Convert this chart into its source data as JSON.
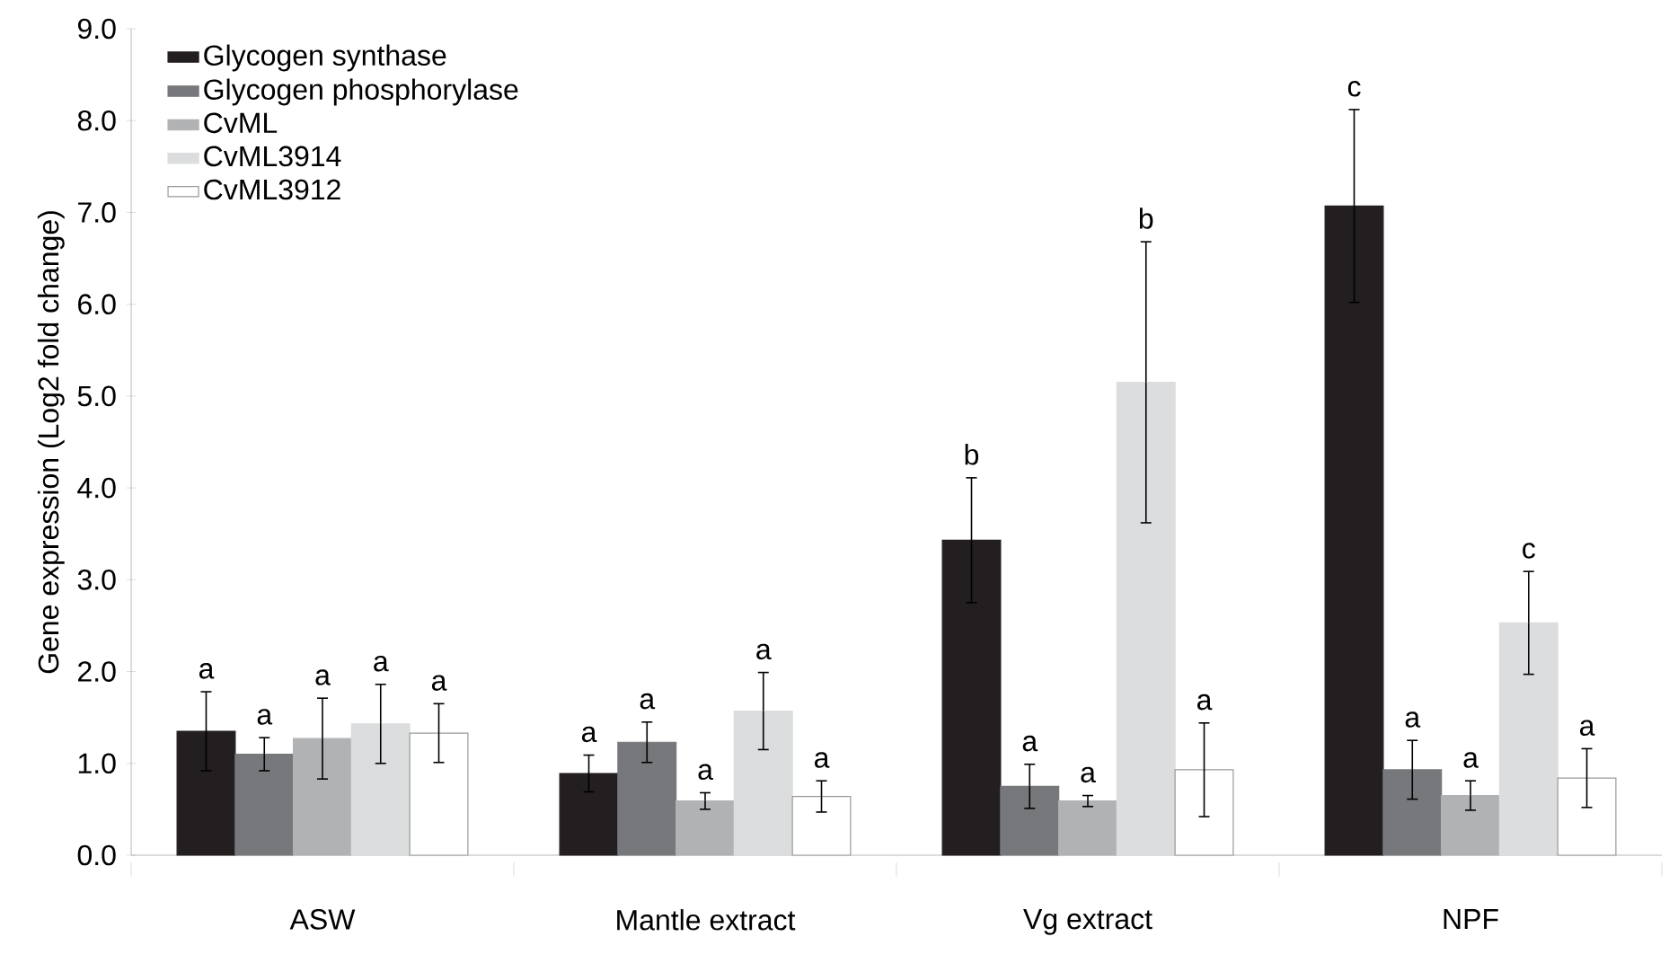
{
  "chart_data": {
    "type": "bar",
    "ylabel": "Gene expression  (Log2 fold  change)",
    "categories": [
      "ASW",
      "Mantle extract",
      "Vg extract",
      "NPF"
    ],
    "series": [
      {
        "name": "Glycogen synthase",
        "color": "#231f20",
        "values": [
          1.35,
          0.89,
          3.43,
          7.07
        ],
        "errors": [
          0.43,
          0.2,
          0.68,
          1.05
        ]
      },
      {
        "name": "Glycogen phosphorylase",
        "color": "#77787b",
        "values": [
          1.1,
          1.23,
          0.75,
          0.93
        ],
        "errors": [
          0.18,
          0.22,
          0.24,
          0.32
        ]
      },
      {
        "name": "CvML",
        "color": "#b1b2b4",
        "values": [
          1.27,
          0.59,
          0.59,
          0.65
        ],
        "errors": [
          0.44,
          0.09,
          0.06,
          0.16
        ]
      },
      {
        "name": "CvML3914",
        "color": "#dcddde",
        "values": [
          1.43,
          1.57,
          5.15,
          2.53
        ],
        "errors": [
          0.43,
          0.42,
          1.53,
          0.56
        ]
      },
      {
        "name": "CvML3912",
        "color": "#ffffff",
        "values": [
          1.33,
          0.64,
          0.93,
          0.84
        ],
        "errors": [
          0.32,
          0.17,
          0.51,
          0.32
        ]
      }
    ],
    "ylim": [
      0,
      9
    ],
    "yticks": [
      {
        "value": 0,
        "label": "0.0"
      },
      {
        "value": 1,
        "label": "1.0"
      },
      {
        "value": 2,
        "label": "2.0"
      },
      {
        "value": 3,
        "label": "3.0"
      },
      {
        "value": 4,
        "label": "4.0"
      },
      {
        "value": 5,
        "label": "5.0"
      },
      {
        "value": 6,
        "label": "6.0"
      },
      {
        "value": 7,
        "label": "7.0"
      },
      {
        "value": 8,
        "label": "8.0"
      },
      {
        "value": 9,
        "label": "9.0"
      }
    ],
    "legend": "top left",
    "annotations": [
      "a",
      "a",
      "a",
      "a",
      "a",
      "a",
      "a",
      "a",
      "a",
      "a",
      "b",
      "a",
      "a",
      "b",
      "a",
      "c",
      "a",
      "a",
      "c",
      "a"
    ]
  }
}
